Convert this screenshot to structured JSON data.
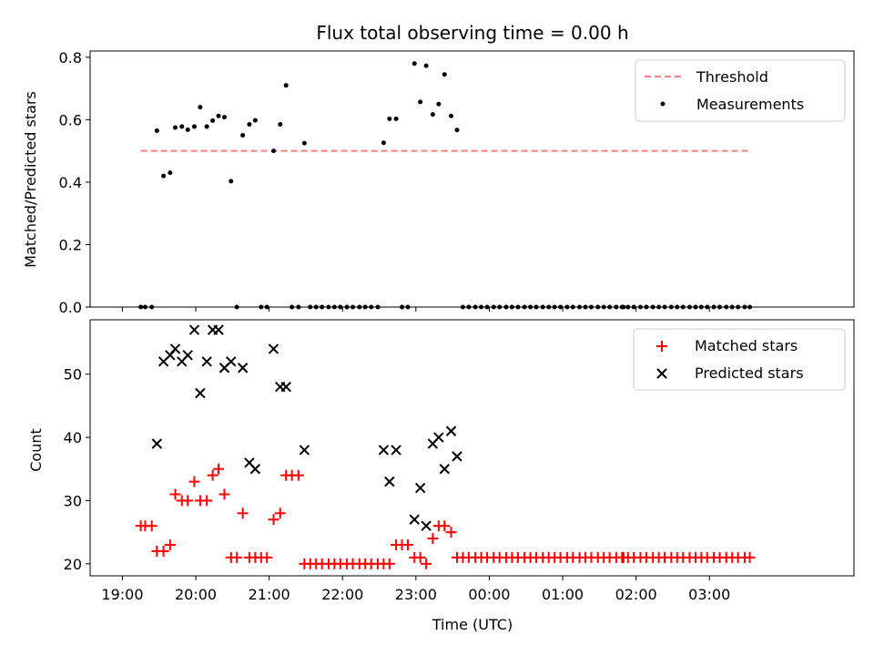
{
  "chart_data": [
    {
      "type": "scatter",
      "title": "Flux total observing time = 0.00 h",
      "ylabel": "Matched/Predicted stars",
      "ylim": [
        0,
        0.82
      ],
      "yticks": [
        "0.0",
        "0.2",
        "0.4",
        "0.6",
        "0.8"
      ],
      "xlim_hours": [
        18.56,
        28.97
      ],
      "legend_position": "top-right",
      "grid": false,
      "threshold": {
        "name": "Threshold",
        "value": 0.5,
        "x_range_hours": [
          19.25,
          27.55
        ],
        "color": "#f08080",
        "style": "dashed"
      },
      "series": [
        {
          "name": "Measurements",
          "color": "#000000",
          "points": [
            [
              19.25,
              0
            ],
            [
              19.31,
              0
            ],
            [
              19.4,
              0
            ],
            [
              19.47,
              0.565
            ],
            [
              19.56,
              0.42
            ],
            [
              19.65,
              0.43
            ],
            [
              19.72,
              0.575
            ],
            [
              19.81,
              0.578
            ],
            [
              19.89,
              0.568
            ],
            [
              19.98,
              0.578
            ],
            [
              20.06,
              0.64
            ],
            [
              20.15,
              0.578
            ],
            [
              20.23,
              0.597
            ],
            [
              20.31,
              0.612
            ],
            [
              20.39,
              0.608
            ],
            [
              20.48,
              0.403
            ],
            [
              20.56,
              0
            ],
            [
              20.64,
              0.55
            ],
            [
              20.73,
              0.585
            ],
            [
              20.81,
              0.598
            ],
            [
              20.89,
              0
            ],
            [
              20.97,
              0
            ],
            [
              21.06,
              0.5
            ],
            [
              21.15,
              0.585
            ],
            [
              21.23,
              0.71
            ],
            [
              21.31,
              0
            ],
            [
              21.4,
              0
            ],
            [
              21.48,
              0.525
            ],
            [
              21.56,
              0
            ],
            [
              21.64,
              0
            ],
            [
              21.72,
              0
            ],
            [
              21.81,
              0
            ],
            [
              21.89,
              0
            ],
            [
              21.97,
              0
            ],
            [
              22.06,
              0
            ],
            [
              22.14,
              0
            ],
            [
              22.23,
              0
            ],
            [
              22.31,
              0
            ],
            [
              22.39,
              0
            ],
            [
              22.48,
              0
            ],
            [
              22.56,
              0.526
            ],
            [
              22.64,
              0.603
            ],
            [
              22.73,
              0.603
            ],
            [
              22.81,
              0
            ],
            [
              22.89,
              0
            ],
            [
              22.98,
              0.78
            ],
            [
              23.06,
              0.657
            ],
            [
              23.14,
              0.773
            ],
            [
              23.23,
              0.617
            ],
            [
              23.31,
              0.65
            ],
            [
              23.39,
              0.745
            ],
            [
              23.48,
              0.612
            ],
            [
              23.56,
              0.567
            ],
            [
              23.64,
              0
            ],
            [
              23.72,
              0
            ],
            [
              23.81,
              0
            ],
            [
              23.89,
              0
            ],
            [
              23.97,
              0
            ],
            [
              24.06,
              0
            ],
            [
              24.14,
              0
            ],
            [
              24.23,
              0
            ],
            [
              24.31,
              0
            ],
            [
              24.39,
              0
            ],
            [
              24.48,
              0
            ],
            [
              24.56,
              0
            ],
            [
              24.64,
              0
            ],
            [
              24.73,
              0
            ],
            [
              24.81,
              0
            ],
            [
              24.89,
              0
            ],
            [
              24.97,
              0
            ],
            [
              25.06,
              0
            ],
            [
              25.14,
              0
            ],
            [
              25.23,
              0
            ],
            [
              25.31,
              0
            ],
            [
              25.39,
              0
            ],
            [
              25.48,
              0
            ],
            [
              25.56,
              0
            ],
            [
              25.64,
              0
            ],
            [
              25.73,
              0
            ],
            [
              25.81,
              0
            ],
            [
              25.83,
              0
            ],
            [
              25.89,
              0
            ],
            [
              25.97,
              0
            ],
            [
              26.06,
              0
            ],
            [
              26.14,
              0
            ],
            [
              26.23,
              0
            ],
            [
              26.31,
              0
            ],
            [
              26.39,
              0
            ],
            [
              26.48,
              0
            ],
            [
              26.56,
              0
            ],
            [
              26.64,
              0
            ],
            [
              26.73,
              0
            ],
            [
              26.81,
              0
            ],
            [
              26.89,
              0
            ],
            [
              26.97,
              0
            ],
            [
              27.06,
              0
            ],
            [
              27.14,
              0
            ],
            [
              27.23,
              0
            ],
            [
              27.31,
              0
            ],
            [
              27.39,
              0
            ],
            [
              27.48,
              0
            ],
            [
              27.55,
              0
            ]
          ]
        }
      ]
    },
    {
      "type": "scatter",
      "xlabel": "Time (UTC)",
      "ylabel": "Count",
      "ylim": [
        18.1,
        58.6
      ],
      "yticks": [
        "20",
        "30",
        "40",
        "50"
      ],
      "xlim_hours": [
        18.56,
        28.97
      ],
      "xticks": [
        "19:00",
        "20:00",
        "21:00",
        "22:00",
        "23:00",
        "00:00",
        "01:00",
        "02:00",
        "03:00"
      ],
      "legend_position": "top-right",
      "grid": false,
      "series": [
        {
          "name": "Matched stars",
          "color": "#ff0000",
          "marker": "+",
          "points": [
            [
              19.25,
              26
            ],
            [
              19.31,
              26
            ],
            [
              19.4,
              26
            ],
            [
              19.47,
              22
            ],
            [
              19.56,
              22
            ],
            [
              19.65,
              23
            ],
            [
              19.72,
              31
            ],
            [
              19.81,
              30
            ],
            [
              19.89,
              30
            ],
            [
              19.98,
              33
            ],
            [
              20.06,
              30
            ],
            [
              20.15,
              30
            ],
            [
              20.23,
              34
            ],
            [
              20.31,
              35
            ],
            [
              20.39,
              31
            ],
            [
              20.48,
              21
            ],
            [
              20.56,
              21
            ],
            [
              20.64,
              28
            ],
            [
              20.73,
              21
            ],
            [
              20.81,
              21
            ],
            [
              20.89,
              21
            ],
            [
              20.97,
              21
            ],
            [
              21.06,
              27
            ],
            [
              21.15,
              28
            ],
            [
              21.23,
              34
            ],
            [
              21.31,
              34
            ],
            [
              21.4,
              34
            ],
            [
              21.48,
              20
            ],
            [
              21.56,
              20
            ],
            [
              21.64,
              20
            ],
            [
              21.72,
              20
            ],
            [
              21.81,
              20
            ],
            [
              21.89,
              20
            ],
            [
              21.97,
              20
            ],
            [
              22.06,
              20
            ],
            [
              22.14,
              20
            ],
            [
              22.23,
              20
            ],
            [
              22.31,
              20
            ],
            [
              22.39,
              20
            ],
            [
              22.48,
              20
            ],
            [
              22.56,
              20
            ],
            [
              22.64,
              20
            ],
            [
              22.73,
              23
            ],
            [
              22.81,
              23
            ],
            [
              22.89,
              23
            ],
            [
              22.98,
              21
            ],
            [
              23.06,
              21
            ],
            [
              23.14,
              20
            ],
            [
              23.23,
              24
            ],
            [
              23.31,
              26
            ],
            [
              23.39,
              26
            ],
            [
              23.48,
              25
            ],
            [
              23.56,
              21
            ],
            [
              23.64,
              21
            ],
            [
              23.72,
              21
            ],
            [
              23.81,
              21
            ],
            [
              23.89,
              21
            ],
            [
              23.97,
              21
            ],
            [
              24.06,
              21
            ],
            [
              24.14,
              21
            ],
            [
              24.23,
              21
            ],
            [
              24.31,
              21
            ],
            [
              24.39,
              21
            ],
            [
              24.48,
              21
            ],
            [
              24.56,
              21
            ],
            [
              24.64,
              21
            ],
            [
              24.73,
              21
            ],
            [
              24.81,
              21
            ],
            [
              24.89,
              21
            ],
            [
              24.97,
              21
            ],
            [
              25.06,
              21
            ],
            [
              25.14,
              21
            ],
            [
              25.23,
              21
            ],
            [
              25.31,
              21
            ],
            [
              25.39,
              21
            ],
            [
              25.48,
              21
            ],
            [
              25.56,
              21
            ],
            [
              25.64,
              21
            ],
            [
              25.73,
              21
            ],
            [
              25.81,
              21
            ],
            [
              25.83,
              21
            ],
            [
              25.89,
              21
            ],
            [
              25.97,
              21
            ],
            [
              26.06,
              21
            ],
            [
              26.14,
              21
            ],
            [
              26.23,
              21
            ],
            [
              26.31,
              21
            ],
            [
              26.39,
              21
            ],
            [
              26.48,
              21
            ],
            [
              26.56,
              21
            ],
            [
              26.64,
              21
            ],
            [
              26.73,
              21
            ],
            [
              26.81,
              21
            ],
            [
              26.89,
              21
            ],
            [
              26.97,
              21
            ],
            [
              27.06,
              21
            ],
            [
              27.14,
              21
            ],
            [
              27.23,
              21
            ],
            [
              27.31,
              21
            ],
            [
              27.39,
              21
            ],
            [
              27.48,
              21
            ],
            [
              27.55,
              21
            ]
          ]
        },
        {
          "name": "Predicted stars",
          "color": "#000000",
          "marker": "x",
          "points": [
            [
              19.47,
              39
            ],
            [
              19.56,
              52
            ],
            [
              19.65,
              53
            ],
            [
              19.72,
              54
            ],
            [
              19.81,
              52
            ],
            [
              19.89,
              53
            ],
            [
              19.98,
              57
            ],
            [
              20.06,
              47
            ],
            [
              20.15,
              52
            ],
            [
              20.23,
              57
            ],
            [
              20.31,
              57
            ],
            [
              20.39,
              51
            ],
            [
              20.48,
              52
            ],
            [
              20.64,
              51
            ],
            [
              20.73,
              36
            ],
            [
              20.81,
              35
            ],
            [
              21.06,
              54
            ],
            [
              21.15,
              48
            ],
            [
              21.23,
              48
            ],
            [
              21.48,
              38
            ],
            [
              22.56,
              38
            ],
            [
              22.64,
              33
            ],
            [
              22.73,
              38
            ],
            [
              22.98,
              27
            ],
            [
              23.06,
              32
            ],
            [
              23.14,
              26
            ],
            [
              23.23,
              39
            ],
            [
              23.31,
              40
            ],
            [
              23.39,
              35
            ],
            [
              23.48,
              41
            ],
            [
              23.56,
              37
            ]
          ]
        }
      ]
    }
  ]
}
